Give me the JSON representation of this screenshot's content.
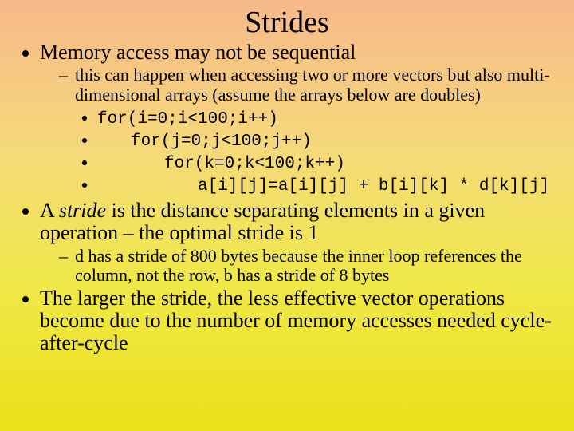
{
  "title": "Strides",
  "bullets": {
    "b1": "Memory access may not be sequential",
    "b1_sub": "this can happen when accessing two or more vectors but also multi-dimensional arrays (assume the arrays below are doubles)",
    "code1": "for(i=0;i<100;i++)",
    "code2": "for(j=0;j<100;j++)",
    "code3": "for(k=0;k<100;k++)",
    "code4": "a[i][j]=a[i][j] + b[i][k] * d[k][j]",
    "b2_pre": "A ",
    "b2_em": "stride",
    "b2_post": " is the distance separating elements in a given operation – the optimal stride is 1",
    "b2_sub": "d has a stride of 800 bytes because the inner loop references the column, not the row, b has a stride of 8 bytes",
    "b3": "The larger the stride, the less effective vector operations become due to the number of memory accesses needed cycle-after-cycle"
  },
  "colors": {
    "grad_top": "#f7b88a",
    "grad_mid1": "#f5d97a",
    "grad_mid2": "#f0e84a",
    "grad_bottom": "#ece018",
    "text": "#000000"
  },
  "typography": {
    "title_fontsize": 38,
    "lvl1_fontsize": 26,
    "lvl2_fontsize": 22,
    "lvl3_fontsize": 21,
    "body_family": "Times New Roman",
    "code_family": "Courier New"
  }
}
